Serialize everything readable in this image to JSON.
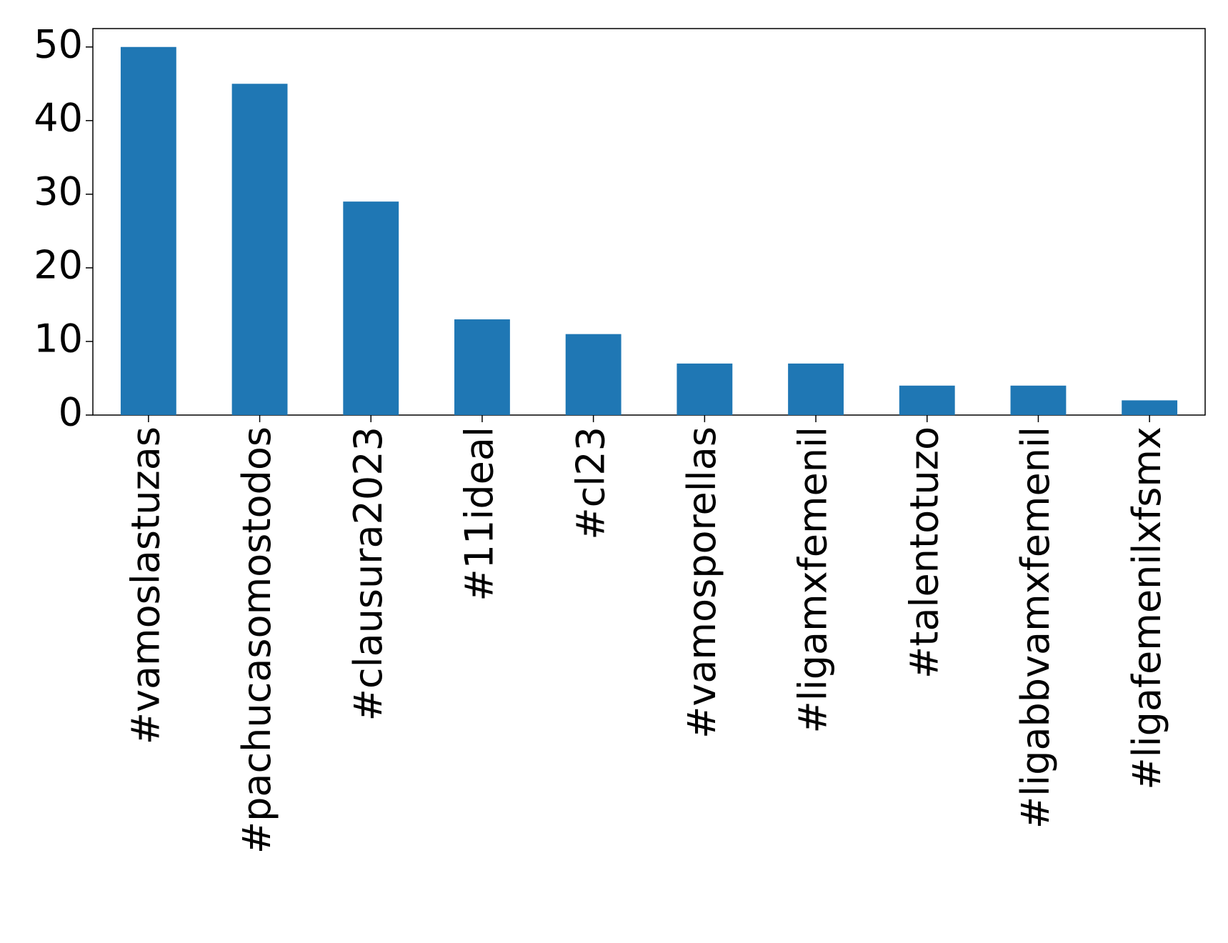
{
  "chart_data": {
    "type": "bar",
    "categories": [
      "#vamoslastuzas",
      "#pachucasomostodos",
      "#clausura2023",
      "#11ideal",
      "#cl23",
      "#vamosporellas",
      "#ligamxfemenil",
      "#talentotuzo",
      "#ligabbvamxfemenil",
      "#ligafemenilxfsmx"
    ],
    "values": [
      50,
      45,
      29,
      13,
      11,
      7,
      7,
      4,
      4,
      2
    ],
    "color": "#1f77b4",
    "ylim": [
      0,
      52.5
    ],
    "yticks": [
      0,
      10,
      20,
      30,
      40,
      50
    ],
    "grid": false
  }
}
